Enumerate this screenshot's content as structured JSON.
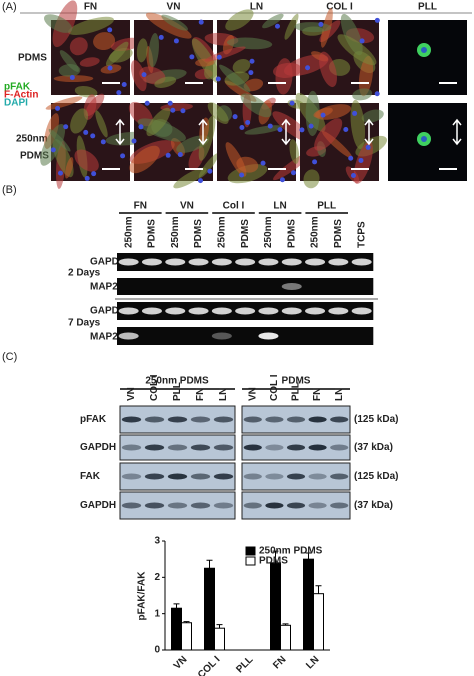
{
  "panel_a": {
    "label": "(A)",
    "columns": [
      "FN",
      "VN",
      "LN",
      "COL I",
      "PLL"
    ],
    "row_1": "PDMS",
    "row_2": [
      "250nm",
      "PDMS"
    ],
    "stains": [
      "pFAK",
      "F-Actin",
      "DAPI"
    ]
  },
  "panel_b": {
    "label": "(B)",
    "groups": [
      "FN",
      "VN",
      "Col I",
      "LN",
      "PLL"
    ],
    "lanes": [
      "250nm",
      "PDMS",
      "250nm",
      "PDMS",
      "250nm",
      "PDMS",
      "250nm",
      "PDMS",
      "250nm",
      "PDMS",
      "TCPS"
    ],
    "rows": [
      "GAPDH",
      "MAP2",
      "GAPDH",
      "MAP2"
    ],
    "times": [
      "2 Days",
      "7 Days"
    ]
  },
  "panel_c": {
    "label": "(C)",
    "groups": [
      "250nm PDMS",
      "PDMS"
    ],
    "lanes": [
      "VN",
      "COL I",
      "PLL",
      "FN",
      "LN"
    ],
    "rows": [
      "pFAK",
      "GAPDH",
      "FAK",
      "GAPDH"
    ],
    "sizes": [
      "(125 kDa)",
      "(37 kDa)",
      "(125 kDa)",
      "(37 kDa)"
    ]
  },
  "chart_data": {
    "type": "bar",
    "y_label": "pFAK/FAK",
    "categories": [
      "VN",
      "COL I",
      "PLL",
      "FN",
      "LN"
    ],
    "series": [
      {
        "name": "250nm PDMS",
        "color": "#000000",
        "values": [
          1.15,
          2.25,
          null,
          2.4,
          2.5
        ],
        "errors": [
          0.12,
          0.22,
          null,
          0.32,
          0.17
        ]
      },
      {
        "name": "PDMS",
        "color": "#ffffff",
        "values": [
          0.75,
          0.6,
          null,
          0.68,
          1.55
        ],
        "errors": [
          0.03,
          0.1,
          null,
          0.04,
          0.22
        ]
      }
    ],
    "ylim": [
      0,
      3
    ],
    "yticks": [
      0,
      1,
      2,
      3
    ]
  }
}
